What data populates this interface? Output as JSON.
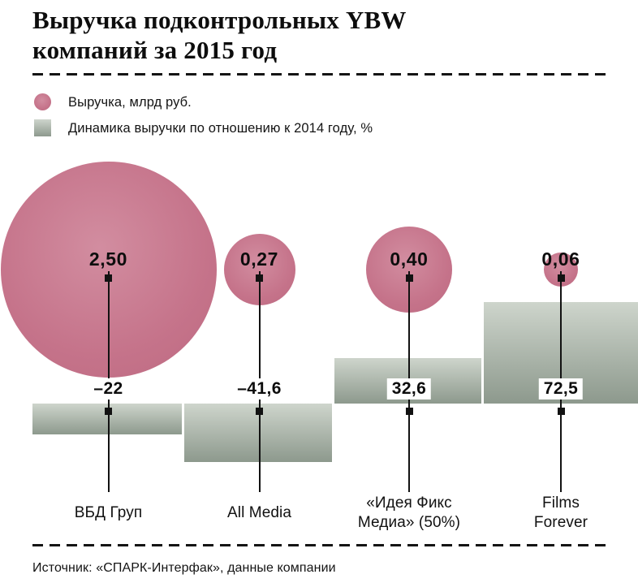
{
  "title": {
    "full": "Выручка подконтрольных YBW компаний за 2015 год",
    "line1": "Выручка подконтрольных YBW",
    "line2": "компаний за 2015 год"
  },
  "legend": {
    "revenue": "Выручка, млрд руб.",
    "dynamics": "Динамика выручки по отношению к 2014 году, %"
  },
  "source": "Источник: «СПАРК-Интерфак», данные компании",
  "colors": {
    "bubble_pink": "#c5738a",
    "bar_gradient_light": "#ced5cc",
    "bar_gradient_dark": "#8d998d",
    "text": "#111111",
    "background": "#ffffff"
  },
  "chart_data": {
    "type": "bubble+bar",
    "title": "Выручка подконтрольных YBW компаний за 2015 год",
    "categories": [
      "ВБД Груп",
      "All Media",
      "«Идея Фикс Медиа» (50%)",
      "Films Forever"
    ],
    "category_lines": [
      [
        "ВБД Груп"
      ],
      [
        "All Media"
      ],
      [
        "«Идея Фикс",
        "Медиа» (50%)"
      ],
      [
        "Films",
        "Forever"
      ]
    ],
    "series": [
      {
        "name": "Выручка, млрд руб.",
        "type": "bubble",
        "unit": "млрд руб.",
        "values": [
          2.5,
          0.27,
          0.4,
          0.06
        ],
        "value_labels": [
          "2,50",
          "0,27",
          "0,40",
          "0,06"
        ]
      },
      {
        "name": "Динамика выручки по отношению к 2014 году, %",
        "type": "bar",
        "unit": "%",
        "values": [
          -22,
          -41.6,
          32.6,
          72.5
        ],
        "value_labels": [
          "–22",
          "–41,6",
          "32,6",
          "72,5"
        ]
      }
    ],
    "legend_position": "top-left",
    "grid": false,
    "baseline": 0
  }
}
